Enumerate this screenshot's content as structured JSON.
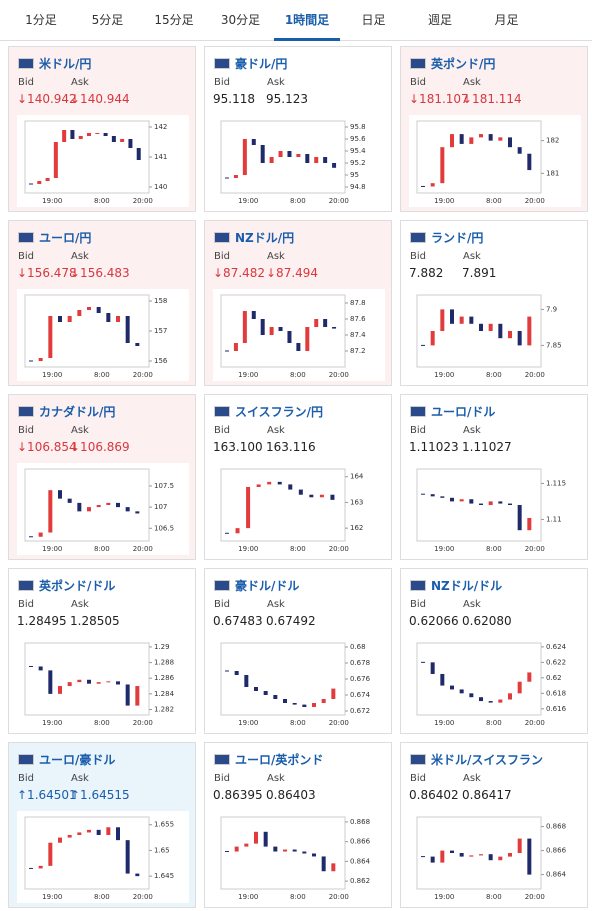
{
  "tabs": [
    "1分足",
    "5分足",
    "15分足",
    "30分足",
    "1時間足",
    "日足",
    "週足",
    "月足"
  ],
  "active_tab": 4,
  "bid_label": "Bid",
  "ask_label": "Ask",
  "chart_xticks": [
    "19:00",
    "8:00",
    "20:00"
  ],
  "cards": [
    {
      "name": "米ドル/円",
      "bid": "↓140.942",
      "ask": "↓140.944",
      "color": "#d9363e",
      "background": "#fdf0f0",
      "chart": {
        "type": "candlestick",
        "ylim": [
          139.8,
          142.2
        ],
        "yticks": [
          140,
          141,
          142
        ],
        "closes": [
          140.1,
          140.2,
          140.3,
          141.5,
          141.9,
          141.6,
          141.7,
          141.8,
          141.8,
          141.7,
          141.5,
          141.6,
          141.3,
          140.9
        ]
      }
    },
    {
      "name": "豪ドル/円",
      "bid": "95.118",
      "ask": "95.123",
      "color": "#222222",
      "background": "#ffffff",
      "chart": {
        "type": "candlestick",
        "ylim": [
          94.7,
          95.9
        ],
        "yticks": [
          94.8,
          95,
          95.2,
          95.4,
          95.6,
          95.8
        ],
        "closes": [
          94.95,
          95.0,
          95.6,
          95.5,
          95.2,
          95.3,
          95.4,
          95.3,
          95.35,
          95.2,
          95.3,
          95.2,
          95.12
        ]
      }
    },
    {
      "name": "英ポンド/円",
      "bid": "↓181.107",
      "ask": "↓181.114",
      "color": "#d9363e",
      "background": "#fdf0f0",
      "chart": {
        "type": "candlestick",
        "ylim": [
          180.4,
          182.6
        ],
        "yticks": [
          181,
          182
        ],
        "closes": [
          180.6,
          180.7,
          181.8,
          182.2,
          181.9,
          182.1,
          182.2,
          182.0,
          182.1,
          181.8,
          181.6,
          181.1
        ]
      }
    },
    {
      "name": "ユーロ/円",
      "bid": "↓156.478",
      "ask": "↓156.483",
      "color": "#d9363e",
      "background": "#fdf0f0",
      "chart": {
        "type": "candlestick",
        "ylim": [
          155.8,
          158.2
        ],
        "yticks": [
          156,
          157,
          158
        ],
        "closes": [
          156.0,
          156.1,
          157.5,
          157.3,
          157.5,
          157.7,
          157.8,
          157.6,
          157.3,
          157.5,
          156.6,
          156.5
        ]
      }
    },
    {
      "name": "NZドル/円",
      "bid": "↓87.482",
      "ask": "↓87.494",
      "color": "#d9363e",
      "background": "#fdf0f0",
      "chart": {
        "type": "candlestick",
        "ylim": [
          87.0,
          87.9
        ],
        "yticks": [
          87.2,
          87.4,
          87.6,
          87.8
        ],
        "closes": [
          87.2,
          87.3,
          87.7,
          87.6,
          87.4,
          87.5,
          87.45,
          87.3,
          87.2,
          87.5,
          87.6,
          87.5,
          87.48
        ]
      }
    },
    {
      "name": "ランド/円",
      "bid": "7.882",
      "ask": "7.891",
      "color": "#222222",
      "background": "#ffffff",
      "chart": {
        "type": "candlestick",
        "ylim": [
          7.82,
          7.92
        ],
        "yticks": [
          7.85,
          7.9
        ],
        "closes": [
          7.85,
          7.87,
          7.9,
          7.88,
          7.89,
          7.88,
          7.87,
          7.88,
          7.86,
          7.87,
          7.85,
          7.89
        ]
      }
    },
    {
      "name": "カナダドル/円",
      "bid": "↓106.854",
      "ask": "↓106.869",
      "color": "#d9363e",
      "background": "#fdf0f0",
      "chart": {
        "type": "candlestick",
        "ylim": [
          106.2,
          107.9
        ],
        "yticks": [
          106.5,
          107,
          107.5
        ],
        "closes": [
          106.3,
          106.4,
          107.4,
          107.2,
          107.1,
          106.9,
          107.0,
          107.05,
          107.1,
          107.0,
          106.9,
          106.85
        ]
      }
    },
    {
      "name": "スイスフラン/円",
      "bid": "163.100",
      "ask": "163.116",
      "color": "#222222",
      "background": "#ffffff",
      "chart": {
        "type": "candlestick",
        "ylim": [
          161.5,
          164.3
        ],
        "yticks": [
          162,
          163,
          164
        ],
        "closes": [
          161.8,
          162.0,
          163.6,
          163.7,
          163.8,
          163.7,
          163.5,
          163.3,
          163.2,
          163.3,
          163.1
        ]
      }
    },
    {
      "name": "ユーロ/ドル",
      "bid": "1.11023",
      "ask": "1.11027",
      "color": "#222222",
      "background": "#ffffff",
      "chart": {
        "type": "candlestick",
        "ylim": [
          1.107,
          1.117
        ],
        "yticks": [
          1.11,
          1.115
        ],
        "closes": [
          1.1135,
          1.1132,
          1.113,
          1.1125,
          1.1128,
          1.1122,
          1.112,
          1.1125,
          1.1122,
          1.112,
          1.1085,
          1.1102
        ]
      }
    },
    {
      "name": "英ポンド/ドル",
      "bid": "1.28495",
      "ask": "1.28505",
      "color": "#222222",
      "background": "#ffffff",
      "chart": {
        "type": "candlestick",
        "ylim": [
          1.2813,
          1.2905
        ],
        "yticks": [
          1.282,
          1.284,
          1.286,
          1.288,
          1.29
        ],
        "closes": [
          1.2875,
          1.287,
          1.284,
          1.285,
          1.2855,
          1.2858,
          1.2853,
          1.2855,
          1.2856,
          1.2852,
          1.2825,
          1.285
        ]
      }
    },
    {
      "name": "豪ドル/ドル",
      "bid": "0.67483",
      "ask": "0.67492",
      "color": "#222222",
      "background": "#ffffff",
      "chart": {
        "type": "candlestick",
        "ylim": [
          0.6715,
          0.6805
        ],
        "yticks": [
          0.672,
          0.674,
          0.676,
          0.678,
          0.68
        ],
        "closes": [
          0.677,
          0.6765,
          0.675,
          0.6745,
          0.674,
          0.6735,
          0.673,
          0.6728,
          0.6725,
          0.673,
          0.6735,
          0.6748
        ]
      }
    },
    {
      "name": "NZドル/ドル",
      "bid": "0.62066",
      "ask": "0.62080",
      "color": "#222222",
      "background": "#ffffff",
      "chart": {
        "type": "candlestick",
        "ylim": [
          0.6152,
          0.6245
        ],
        "yticks": [
          0.616,
          0.618,
          0.62,
          0.622,
          0.624
        ],
        "closes": [
          0.622,
          0.6205,
          0.619,
          0.6185,
          0.618,
          0.6175,
          0.617,
          0.6168,
          0.6172,
          0.618,
          0.6195,
          0.6207
        ]
      }
    },
    {
      "name": "ユーロ/豪ドル",
      "bid": "↑1.64501",
      "ask": "↑1.64515",
      "color": "#1a5dab",
      "background": "#eaf4fb",
      "chart": {
        "type": "candlestick",
        "ylim": [
          1.6425,
          1.6565
        ],
        "yticks": [
          1.645,
          1.65,
          1.655
        ],
        "closes": [
          1.6465,
          1.647,
          1.6515,
          1.6525,
          1.653,
          1.6535,
          1.654,
          1.653,
          1.6545,
          1.652,
          1.6455,
          1.645
        ]
      }
    },
    {
      "name": "ユーロ/英ポンド",
      "bid": "0.86395",
      "ask": "0.86403",
      "color": "#222222",
      "background": "#ffffff",
      "chart": {
        "type": "candlestick",
        "ylim": [
          0.8612,
          0.8685
        ],
        "yticks": [
          0.862,
          0.864,
          0.866,
          0.868
        ],
        "closes": [
          0.865,
          0.8655,
          0.8658,
          0.867,
          0.8655,
          0.865,
          0.8652,
          0.865,
          0.8648,
          0.8645,
          0.863,
          0.8638
        ]
      }
    },
    {
      "name": "米ドル/スイスフラン",
      "bid": "0.86402",
      "ask": "0.86417",
      "color": "#222222",
      "background": "#ffffff",
      "chart": {
        "type": "candlestick",
        "ylim": [
          0.8628,
          0.8688
        ],
        "yticks": [
          0.864,
          0.866,
          0.868
        ],
        "closes": [
          0.8655,
          0.865,
          0.866,
          0.8658,
          0.8655,
          0.8656,
          0.8657,
          0.8652,
          0.8655,
          0.8658,
          0.867,
          0.864
        ]
      }
    }
  ]
}
